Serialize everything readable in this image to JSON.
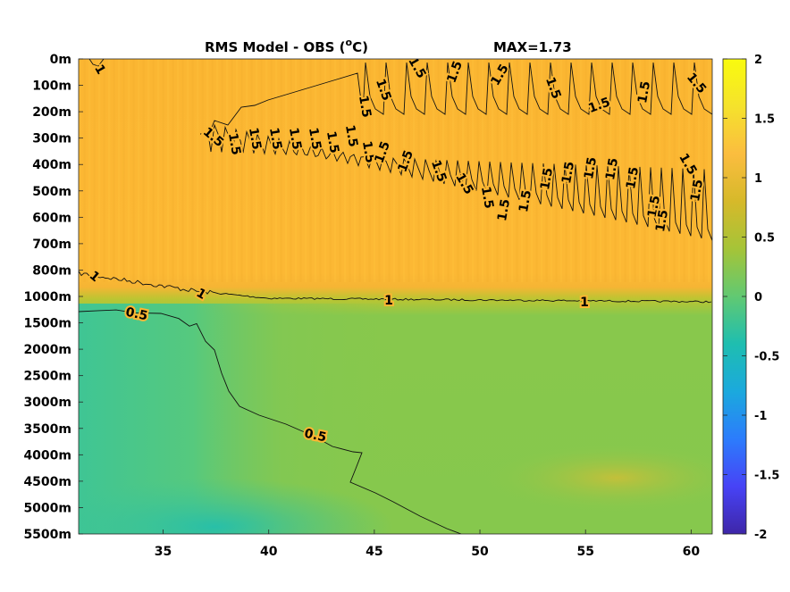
{
  "chart_data": {
    "type": "heatmap",
    "title": "RMS Model - OBS (",
    "title_unit_super": "o",
    "title_unit_rest": "C)",
    "max_label": "MAX=1.73",
    "xlabel": "",
    "ylabel": "",
    "x_ticks": [
      "35",
      "40",
      "45",
      "50",
      "55",
      "60"
    ],
    "x_tick_values": [
      35,
      40,
      45,
      50,
      55,
      60
    ],
    "xlim": [
      31,
      61
    ],
    "y_ticks": [
      "0m",
      "100m",
      "200m",
      "300m",
      "400m",
      "500m",
      "600m",
      "700m",
      "800m",
      "1000m",
      "1500m",
      "2000m",
      "2500m",
      "3000m",
      "3500m",
      "4000m",
      "4500m",
      "5000m",
      "5500m"
    ],
    "colorbar": {
      "ticks": [
        "2",
        "1.5",
        "1",
        "0.5",
        "0",
        "-0.5",
        "-1",
        "-1.5",
        "-2"
      ],
      "tick_values": [
        2,
        1.5,
        1,
        0.5,
        0,
        -0.5,
        -1,
        -1.5,
        -2
      ],
      "range": [
        -2,
        2
      ],
      "colormap": [
        "#3e26a8",
        "#4743f6",
        "#2c7cfc",
        "#1ba9dd",
        "#1ebeb0",
        "#61c972",
        "#a5c438",
        "#d6b92a",
        "#fbbd3f",
        "#f5e22c",
        "#f9fb0e"
      ]
    },
    "field_colors": {
      "upper": "#fbb632",
      "upper_bright": "#fdbb36",
      "transition": "#b9c534",
      "lower_right": "#86c84d",
      "lower_left": "#48c98a",
      "deep_left": "#35c49e",
      "deep_blob": "#c1c137"
    },
    "contours": [
      {
        "level": "1",
        "labels": [
          "1",
          "1",
          "1",
          "1"
        ]
      },
      {
        "level": "0.5",
        "labels": [
          "0.5",
          "0.5"
        ]
      },
      {
        "level": "1.5",
        "labels": [
          "1.5",
          "1.5",
          "1.5",
          "1.5",
          "1.5",
          "1.5",
          "1.5",
          "1.5",
          "1.5",
          "1.5",
          "1.5",
          "1.5",
          "1.5",
          "1.5",
          "1.5",
          "1.5",
          "1.5",
          "1.5",
          "1.5",
          "1.5",
          "1.5",
          "1.5",
          "1.5",
          "1.5",
          "1.5",
          "1.5",
          "1.5",
          "1.5",
          "1.5",
          "1.5",
          "1.5",
          "1.5",
          "1.5",
          "1.5"
        ]
      }
    ],
    "shallow_upper_label": "1"
  }
}
